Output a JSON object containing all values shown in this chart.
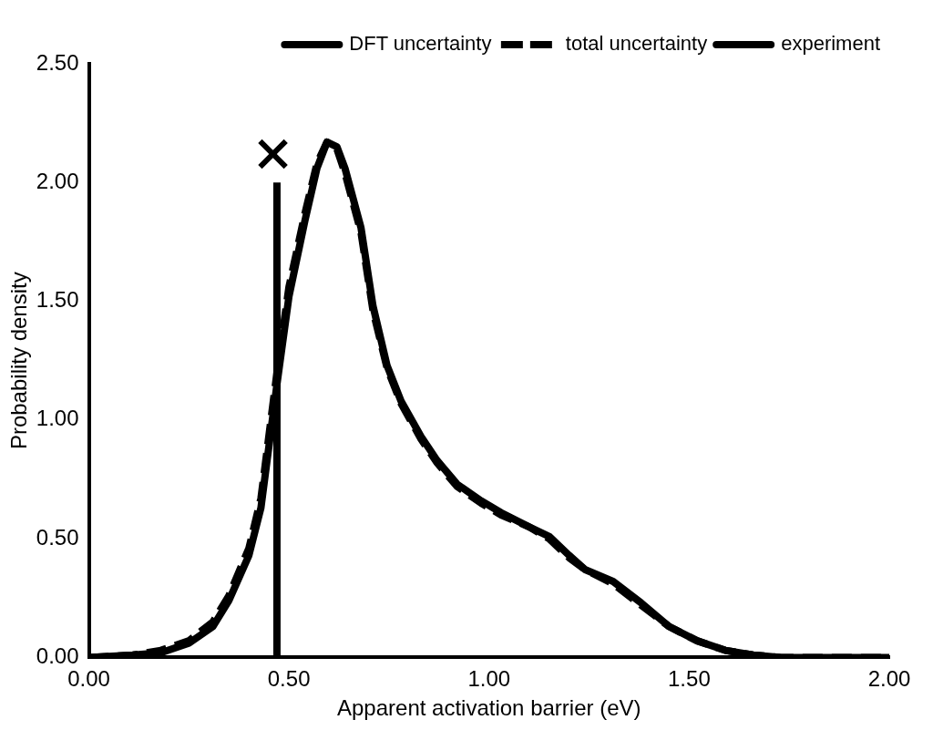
{
  "chart_data": {
    "type": "line",
    "xlabel": "Apparent activation barrier (eV)",
    "ylabel": "Probability density",
    "xlim": [
      0,
      2
    ],
    "ylim": [
      0,
      2.5
    ],
    "xticks": [
      {
        "value": 0,
        "label": "0.00"
      },
      {
        "value": 0.5,
        "label": "0.50"
      },
      {
        "value": 1,
        "label": "1.00"
      },
      {
        "value": 1.5,
        "label": "1.50"
      },
      {
        "value": 2,
        "label": "2.00"
      }
    ],
    "yticks": [
      {
        "value": 0,
        "label": "0.00"
      },
      {
        "value": 0.5,
        "label": "0.50"
      },
      {
        "value": 1,
        "label": "1.00"
      },
      {
        "value": 1.5,
        "label": "1.50"
      },
      {
        "value": 2,
        "label": "2.00"
      },
      {
        "value": 2.5,
        "label": "2.50"
      }
    ],
    "grid": false,
    "legend": "top right",
    "series": [
      {
        "name": "DFT uncertainty",
        "color": "#000000",
        "line_style": "solid",
        "marker": "none",
        "x": [
          0,
          0.11,
          0.18,
          0.25,
          0.31,
          0.35,
          0.4,
          0.43,
          0.47,
          0.5,
          0.54,
          0.57,
          0.595,
          0.62,
          0.64,
          0.68,
          0.71,
          0.745,
          0.78,
          0.83,
          0.87,
          0.92,
          0.98,
          1.03,
          1.1,
          1.15,
          1.2,
          1.24,
          1.31,
          1.38,
          1.45,
          1.52,
          1.59,
          1.66,
          1.73,
          2
        ],
        "values": [
          0,
          0.01,
          0.02,
          0.06,
          0.13,
          0.24,
          0.43,
          0.63,
          1.15,
          1.52,
          1.84,
          2.06,
          2.17,
          2.15,
          2.06,
          1.81,
          1.48,
          1.23,
          1.08,
          0.93,
          0.83,
          0.73,
          0.66,
          0.61,
          0.55,
          0.51,
          0.43,
          0.37,
          0.32,
          0.23,
          0.13,
          0.07,
          0.03,
          0.01,
          0,
          0
        ]
      },
      {
        "name": "total uncertainty",
        "color": "#000000",
        "line_style": "dashed",
        "marker": "none",
        "x": [
          0,
          0.11,
          0.18,
          0.25,
          0.31,
          0.35,
          0.4,
          0.43,
          0.47,
          0.5,
          0.54,
          0.57,
          0.595,
          0.62,
          0.64,
          0.68,
          0.71,
          0.745,
          0.78,
          0.83,
          0.87,
          0.92,
          0.98,
          1.03,
          1.1,
          1.15,
          1.2,
          1.24,
          1.31,
          1.38,
          1.45,
          1.52,
          1.59,
          1.66,
          1.73,
          2
        ],
        "values": [
          0,
          0.01,
          0.03,
          0.07,
          0.15,
          0.26,
          0.46,
          0.67,
          1.2,
          1.56,
          1.87,
          2.08,
          2.17,
          2.14,
          2.04,
          1.79,
          1.46,
          1.22,
          1.07,
          0.92,
          0.82,
          0.72,
          0.65,
          0.6,
          0.55,
          0.5,
          0.42,
          0.37,
          0.31,
          0.22,
          0.13,
          0.07,
          0.03,
          0.01,
          0,
          0
        ]
      },
      {
        "name": "experiment",
        "color": "#000000",
        "line_style": "solid",
        "marker": "none",
        "x": [
          0.47,
          0.47
        ],
        "values": [
          0,
          2
        ]
      },
      {
        "color": "#000000",
        "type": "scatter",
        "marker": "cross",
        "x": [
          0.46
        ],
        "values": [
          2.12
        ]
      }
    ]
  }
}
